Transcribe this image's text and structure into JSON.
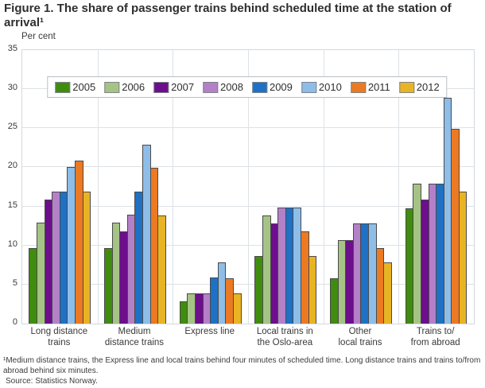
{
  "title": "Figure 1. The share of passenger trains behind scheduled time at the station of arrival¹",
  "footnote": "¹Medium distance trains, the Express line and local trains behind four minutes of scheduled time. Long distance trains and trains to/from abroad behind six minutes.",
  "source": "Source: Statistics Norway.",
  "chart_data": {
    "type": "bar",
    "title": "Figure 1. The share of passenger trains behind scheduled time at the station of arrival",
    "ylabel": "Per cent",
    "xlabel": "",
    "ylim": [
      0,
      35
    ],
    "ytick_interval": 5,
    "grid": true,
    "legend_position": "top-center-inside",
    "categories": [
      "Long distance trains",
      "Medium distance trains",
      "Express line",
      "Local trains in the Oslo-area",
      "Other local trains",
      "Trains to/from abroad"
    ],
    "category_label_lines": [
      [
        "Long distance",
        "trains"
      ],
      [
        "Medium",
        "distance trains"
      ],
      [
        "Express line"
      ],
      [
        "Local trains in",
        "the Oslo-area"
      ],
      [
        "Other",
        "local trains"
      ],
      [
        "Trains to/",
        "from abroad"
      ]
    ],
    "series": [
      {
        "name": "2005",
        "color": "#3f8c0f",
        "values": [
          9.7,
          9.7,
          2.8,
          8.7,
          5.8,
          14.8
        ]
      },
      {
        "name": "2006",
        "color": "#a6c386",
        "values": [
          12.9,
          12.9,
          3.9,
          13.8,
          10.7,
          17.9
        ]
      },
      {
        "name": "2007",
        "color": "#6d0e8c",
        "values": [
          15.9,
          11.8,
          3.9,
          12.8,
          10.7,
          15.9
        ]
      },
      {
        "name": "2008",
        "color": "#b480c8",
        "values": [
          16.9,
          13.9,
          3.9,
          14.9,
          12.8,
          17.9
        ]
      },
      {
        "name": "2009",
        "color": "#1e71c4",
        "values": [
          16.9,
          16.9,
          5.9,
          14.9,
          12.8,
          17.9
        ]
      },
      {
        "name": "2010",
        "color": "#8ebde8",
        "values": [
          20.0,
          22.9,
          7.8,
          14.9,
          12.8,
          28.9
        ]
      },
      {
        "name": "2011",
        "color": "#ec7a22",
        "values": [
          20.9,
          19.9,
          5.8,
          11.8,
          9.7,
          24.9
        ]
      },
      {
        "name": "2012",
        "color": "#e9b424",
        "values": [
          16.9,
          13.8,
          3.9,
          8.7,
          7.8,
          16.9
        ]
      }
    ]
  }
}
